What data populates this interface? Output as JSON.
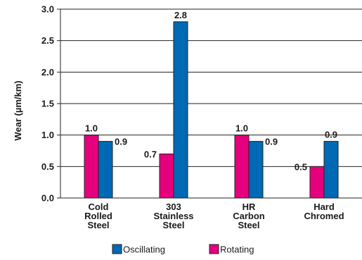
{
  "chart_data": {
    "type": "bar",
    "title": "",
    "xlabel": "",
    "ylabel": "Wear (µm/km)",
    "ylim": [
      0,
      3.0
    ],
    "yticks": [
      "0.0",
      "0.5",
      "1.0",
      "1.5",
      "2.0",
      "2.5",
      "3.0"
    ],
    "grid": true,
    "legend_position": "bottom",
    "categories": [
      [
        "Cold",
        "Rolled",
        "Steel"
      ],
      [
        "303",
        "Stainless",
        "Steel"
      ],
      [
        "HR",
        "Carbon",
        "Steel"
      ],
      [
        "Hard",
        "Chromed"
      ]
    ],
    "series": [
      {
        "name": "Rotating",
        "color": "#e6007e",
        "values": [
          1.0,
          0.7,
          1.0,
          0.5
        ],
        "labels": [
          "1.0",
          "0.7",
          "1.0",
          "0.5"
        ]
      },
      {
        "name": "Oscillating",
        "color": "#0069b4",
        "values": [
          0.9,
          2.8,
          0.9,
          0.9
        ],
        "labels": [
          "0.9",
          "2.8",
          "0.9",
          "0.9"
        ]
      }
    ],
    "legend_order": [
      "Oscillating",
      "Rotating"
    ]
  }
}
